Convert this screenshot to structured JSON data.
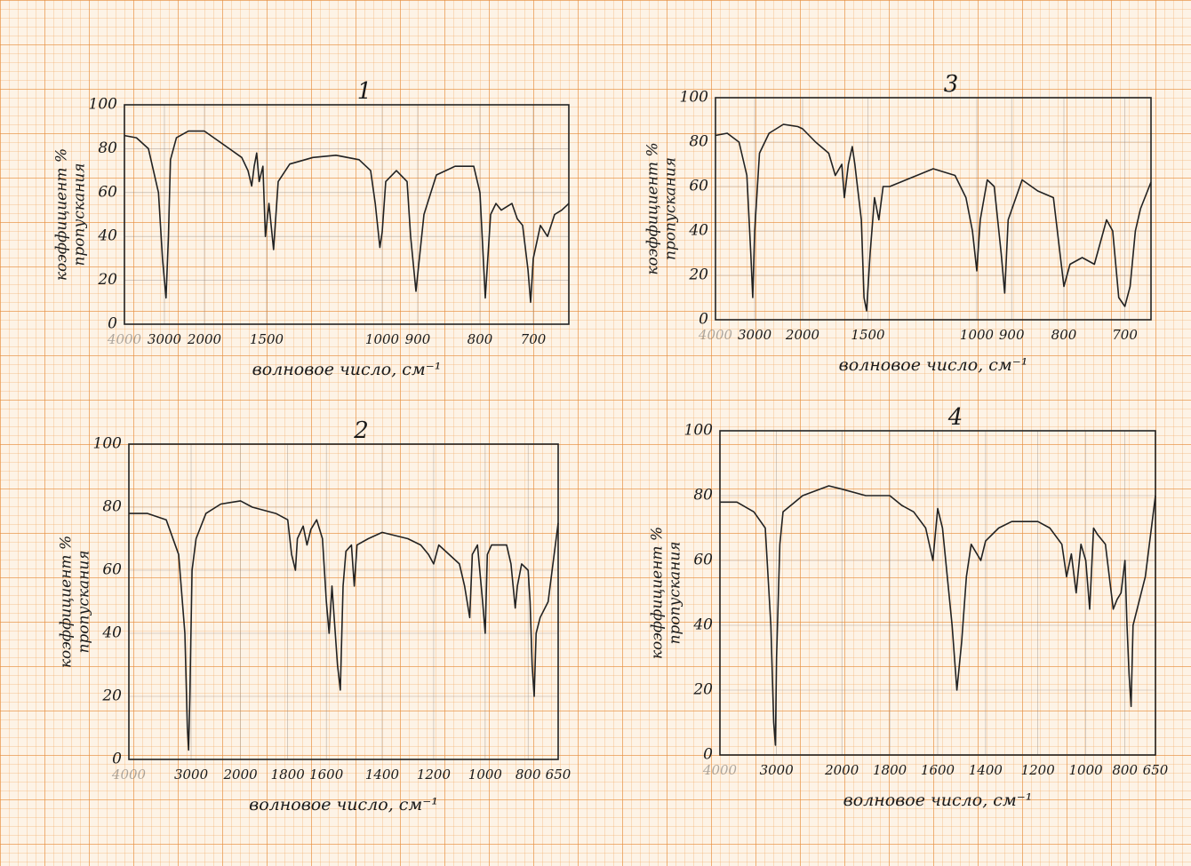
{
  "chart_data": [
    {
      "type": "line",
      "title": "1",
      "ylabel": [
        "коэффициент %",
        "пропускания"
      ],
      "xlabel": "волновое число, см⁻¹",
      "xlim": [
        4000,
        650
      ],
      "xticks": [
        4000,
        3000,
        2000,
        1500,
        1000,
        900,
        800,
        700
      ],
      "ylim": [
        0,
        100
      ],
      "yticks": [
        0,
        20,
        40,
        60,
        80,
        100
      ],
      "grid": true,
      "color": "#222222",
      "x": [
        4000,
        3700,
        3400,
        3150,
        3050,
        2960,
        2900,
        2850,
        2700,
        2400,
        2000,
        1900,
        1800,
        1700,
        1650,
        1620,
        1600,
        1580,
        1560,
        1530,
        1510,
        1490,
        1470,
        1450,
        1400,
        1300,
        1200,
        1100,
        1050,
        1030,
        1010,
        1000,
        990,
        960,
        930,
        920,
        905,
        890,
        870,
        840,
        810,
        800,
        790,
        780,
        770,
        760,
        740,
        730,
        720,
        710,
        705,
        700,
        690,
        680,
        670,
        660,
        650
      ],
      "values": [
        86,
        85,
        80,
        60,
        30,
        12,
        40,
        75,
        85,
        88,
        88,
        84,
        80,
        76,
        70,
        63,
        72,
        78,
        65,
        72,
        40,
        55,
        34,
        65,
        73,
        76,
        77,
        75,
        70,
        55,
        35,
        42,
        65,
        70,
        65,
        40,
        15,
        50,
        68,
        72,
        72,
        60,
        12,
        50,
        55,
        52,
        55,
        48,
        45,
        25,
        10,
        30,
        45,
        40,
        50,
        52,
        55
      ]
    },
    {
      "type": "line",
      "title": "2",
      "ylabel": [
        "коэффициент %",
        "пропускания"
      ],
      "xlabel": "волновое число, см⁻¹",
      "xlim": [
        4000,
        650
      ],
      "xticks": [
        4000,
        3000,
        2000,
        1800,
        1600,
        1400,
        1200,
        1000,
        800,
        650
      ],
      "ylim": [
        0,
        100
      ],
      "yticks": [
        0,
        20,
        40,
        60,
        80,
        100
      ],
      "grid": true,
      "color": "#222222",
      "x": [
        4000,
        3700,
        3400,
        3200,
        3100,
        3060,
        3040,
        3020,
        2980,
        2900,
        2700,
        2400,
        2000,
        1950,
        1850,
        1800,
        1780,
        1760,
        1750,
        1720,
        1700,
        1680,
        1650,
        1620,
        1600,
        1590,
        1580,
        1560,
        1550,
        1540,
        1530,
        1510,
        1500,
        1490,
        1450,
        1400,
        1300,
        1250,
        1220,
        1200,
        1180,
        1100,
        1080,
        1060,
        1050,
        1030,
        1010,
        1000,
        990,
        970,
        900,
        880,
        860,
        850,
        830,
        800,
        790,
        780,
        770,
        760,
        740,
        700,
        680,
        650
      ],
      "values": [
        78,
        78,
        76,
        65,
        40,
        10,
        3,
        20,
        60,
        70,
        78,
        81,
        82,
        80,
        78,
        76,
        65,
        60,
        70,
        74,
        68,
        73,
        76,
        70,
        50,
        40,
        55,
        30,
        22,
        55,
        66,
        68,
        55,
        68,
        70,
        72,
        70,
        68,
        65,
        62,
        68,
        62,
        55,
        45,
        65,
        68,
        50,
        40,
        65,
        68,
        68,
        62,
        48,
        55,
        62,
        60,
        50,
        30,
        20,
        40,
        45,
        50,
        60,
        75
      ]
    },
    {
      "type": "line",
      "title": "3",
      "ylabel": [
        "коэффициент %",
        "пропускания"
      ],
      "xlabel": "волновое число, см⁻¹",
      "xlim": [
        4000,
        650
      ],
      "xticks": [
        4000,
        3000,
        2000,
        1500,
        1000,
        900,
        800,
        700
      ],
      "ylim": [
        0,
        100
      ],
      "yticks": [
        0,
        20,
        40,
        60,
        80,
        100
      ],
      "grid": true,
      "color": "#222222",
      "x": [
        4000,
        3700,
        3400,
        3200,
        3100,
        3050,
        3000,
        2900,
        2700,
        2400,
        2100,
        2000,
        1900,
        1800,
        1750,
        1700,
        1680,
        1650,
        1620,
        1600,
        1580,
        1550,
        1530,
        1510,
        1490,
        1470,
        1450,
        1430,
        1400,
        1300,
        1200,
        1100,
        1050,
        1020,
        1000,
        990,
        970,
        950,
        930,
        920,
        910,
        880,
        850,
        820,
        800,
        790,
        770,
        750,
        730,
        720,
        710,
        700,
        690,
        680,
        670,
        650
      ],
      "values": [
        83,
        84,
        80,
        65,
        30,
        10,
        40,
        75,
        84,
        88,
        87,
        86,
        80,
        75,
        65,
        70,
        55,
        70,
        78,
        70,
        60,
        45,
        10,
        4,
        30,
        55,
        45,
        60,
        60,
        64,
        68,
        65,
        55,
        40,
        22,
        45,
        63,
        60,
        30,
        12,
        45,
        63,
        58,
        55,
        15,
        25,
        28,
        25,
        45,
        40,
        10,
        6,
        15,
        40,
        50,
        62
      ]
    },
    {
      "type": "line",
      "title": "4",
      "ylabel": [
        "коэффициент %",
        "пропускания"
      ],
      "xlabel": "волновое число, см⁻¹",
      "xlim": [
        4000,
        650
      ],
      "xticks": [
        4000,
        3000,
        2000,
        1800,
        1600,
        1400,
        1200,
        1000,
        800,
        650
      ],
      "ylim": [
        0,
        100
      ],
      "yticks": [
        0,
        20,
        40,
        60,
        80,
        100
      ],
      "grid": true,
      "color": "#222222",
      "x": [
        4000,
        3700,
        3400,
        3200,
        3100,
        3050,
        3020,
        3000,
        2950,
        2900,
        2600,
        2200,
        2000,
        1900,
        1800,
        1750,
        1700,
        1650,
        1620,
        1600,
        1580,
        1560,
        1540,
        1520,
        1500,
        1480,
        1460,
        1420,
        1400,
        1350,
        1300,
        1200,
        1150,
        1100,
        1080,
        1060,
        1040,
        1020,
        1000,
        980,
        960,
        940,
        900,
        880,
        860,
        840,
        820,
        800,
        790,
        780,
        770,
        760,
        700,
        650
      ],
      "values": [
        78,
        78,
        75,
        70,
        40,
        10,
        3,
        30,
        65,
        75,
        80,
        83,
        82,
        80,
        80,
        77,
        75,
        70,
        60,
        76,
        70,
        55,
        40,
        20,
        35,
        55,
        65,
        60,
        66,
        70,
        72,
        72,
        70,
        65,
        55,
        62,
        50,
        65,
        60,
        45,
        70,
        68,
        65,
        55,
        45,
        48,
        50,
        60,
        40,
        25,
        15,
        40,
        55,
        80
      ]
    }
  ]
}
